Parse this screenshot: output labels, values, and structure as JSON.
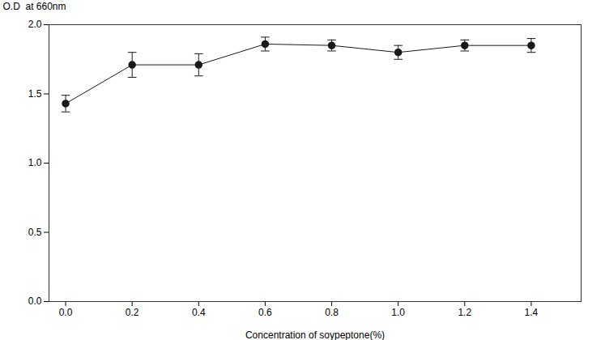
{
  "chart_data": {
    "type": "line",
    "x": [
      0.0,
      0.2,
      0.4,
      0.6,
      0.8,
      1.0,
      1.2,
      1.4
    ],
    "values": [
      1.43,
      1.71,
      1.71,
      1.86,
      1.85,
      1.8,
      1.85,
      1.85
    ],
    "yerr": [
      0.06,
      0.09,
      0.08,
      0.05,
      0.04,
      0.05,
      0.04,
      0.05
    ],
    "color": "#1a1a1a",
    "marker": "circle",
    "line_style": "solid",
    "xlabel": "Concentration of soypeptone(%)",
    "ylabel": "O.D  at 660nm",
    "xlim": [
      -0.05,
      1.55
    ],
    "ylim": [
      0.0,
      2.0
    ],
    "xticks": [
      {
        "value": 0.0,
        "label": "0.0"
      },
      {
        "value": 0.2,
        "label": "0.2"
      },
      {
        "value": 0.4,
        "label": "0.4"
      },
      {
        "value": 0.6,
        "label": "0.6"
      },
      {
        "value": 0.8,
        "label": "0.8"
      },
      {
        "value": 1.0,
        "label": "1.0"
      },
      {
        "value": 1.2,
        "label": "1.2"
      },
      {
        "value": 1.4,
        "label": "1.4"
      }
    ],
    "yticks": [
      {
        "value": 0.0,
        "label": "0.0"
      },
      {
        "value": 0.5,
        "label": "0.5"
      },
      {
        "value": 1.0,
        "label": "1.0"
      },
      {
        "value": 1.5,
        "label": "1.5"
      },
      {
        "value": 2.0,
        "label": "2.0"
      }
    ],
    "grid": false
  }
}
